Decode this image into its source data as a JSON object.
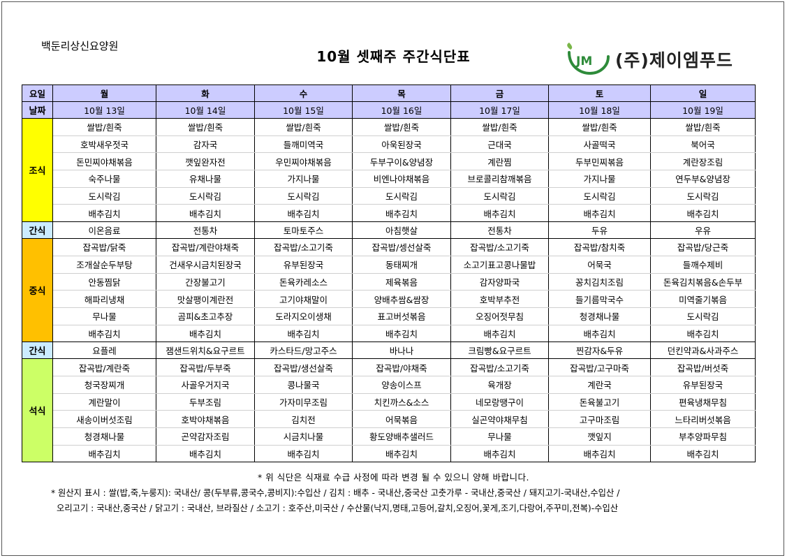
{
  "org_name": "백둔리상신요양원",
  "title": "10월 셋째주 주간식단표",
  "logo_text": "(주)제이엠푸드",
  "headers": {
    "day_label": "요일",
    "date_label": "날짜",
    "days": [
      "월",
      "화",
      "수",
      "목",
      "금",
      "토",
      "일"
    ],
    "dates": [
      "10월 13일",
      "10월 14일",
      "10월 15일",
      "10월 16일",
      "10월 17일",
      "10월 18일",
      "10월 19일"
    ]
  },
  "sections": {
    "breakfast": {
      "label": "조식",
      "rows": [
        [
          "쌀밥/흰죽",
          "쌀밥/흰죽",
          "쌀밥/흰죽",
          "쌀밥/흰죽",
          "쌀밥/흰죽",
          "쌀밥/흰죽",
          "쌀밥/흰죽"
        ],
        [
          "호박새우젓국",
          "감자국",
          "들깨미역국",
          "아욱된장국",
          "근대국",
          "사골떡국",
          "북어국"
        ],
        [
          "돈민찌야채볶음",
          "깻잎완자전",
          "우민찌야채볶음",
          "두부구이&양념장",
          "계란찜",
          "두부민찌볶음",
          "계란장조림"
        ],
        [
          "숙주나물",
          "유채나물",
          "가지나물",
          "비엔나야채볶음",
          "브로콜리참깨볶음",
          "가지나물",
          "연두부&양념장"
        ],
        [
          "도시락김",
          "도시락김",
          "도시락김",
          "도시락김",
          "도시락김",
          "도시락김",
          "도시락김"
        ],
        [
          "배추김치",
          "배추김치",
          "배추김치",
          "배추김치",
          "배추김치",
          "배추김치",
          "배추김치"
        ]
      ]
    },
    "snack1": {
      "label": "간식",
      "row": [
        "이온음료",
        "전통차",
        "토마토주스",
        "아침햇살",
        "전통차",
        "두유",
        "우유"
      ]
    },
    "lunch": {
      "label": "중식",
      "rows": [
        [
          "잡곡밥/닭죽",
          "잡곡밥/계란야채죽",
          "잡곡밥/소고기죽",
          "잡곡밥/셍선살죽",
          "잡곡밥/소고기죽",
          "잡곡밥/참치죽",
          "잡곡밥/당근죽"
        ],
        [
          "조개살순두부탕",
          "건새우시금치된장국",
          "유부된장국",
          "동태찌개",
          "소고기표고콩나물밥",
          "어묵국",
          "들깨수제비"
        ],
        [
          "안동찜닭",
          "간장불고기",
          "돈육카레소스",
          "제육볶음",
          "감자양파국",
          "꽁치김치조림",
          "돈육김치볶음&손두부"
        ],
        [
          "해파리냉채",
          "맛살팽이계란전",
          "고기야채말이",
          "양배추쌈&쌈장",
          "호박부추전",
          "들기름막국수",
          "미역줄기볶음"
        ],
        [
          "무나물",
          "곰피&초고추장",
          "도라지오이생채",
          "표고버섯볶음",
          "오징어젓무침",
          "청경채나물",
          "도시락김"
        ],
        [
          "배추김치",
          "배추김치",
          "배추김치",
          "배추김치",
          "배추김치",
          "배추김치",
          "배추김치"
        ]
      ]
    },
    "snack2": {
      "label": "간식",
      "row": [
        "요플레",
        "잼샌드위치&요구르트",
        "카스타드/망고주스",
        "바나나",
        "크림빵&요구르트",
        "찐감자&두유",
        "던킨약과&사과주스"
      ]
    },
    "dinner": {
      "label": "석식",
      "rows": [
        [
          "잡곡밥/계란죽",
          "잡곡밥/두부죽",
          "잡곡밥/생선살죽",
          "잡곡밥/야채죽",
          "잡곡밥/소고기죽",
          "잡곡밥/고구마죽",
          "잡곡밥/버섯죽"
        ],
        [
          "청국장찌개",
          "사골우거지국",
          "콩나물국",
          "양송이스프",
          "육개장",
          "계란국",
          "유부된장국"
        ],
        [
          "계란말이",
          "두부조림",
          "가자미무조림",
          "치킨까스&소스",
          "네모랑땡구이",
          "돈육불고기",
          "편육냉채무침"
        ],
        [
          "새송이버섯조림",
          "호박야채볶음",
          "김치전",
          "어묵볶음",
          "실곤약야채무침",
          "고구마조림",
          "느타리버섯볶음"
        ],
        [
          "청경채나물",
          "곤약감자조림",
          "시금치나물",
          "황도양배추샐러드",
          "무나물",
          "깻잎지",
          "부추양파무침"
        ],
        [
          "배추김치",
          "배추김치",
          "배추김치",
          "배추김치",
          "배추김치",
          "배추김치",
          "배추김치"
        ]
      ]
    }
  },
  "notice": "* 위 식단은 식재료 수급 사정에 따라 변경 될 수 있으니 양해 바랍니다.",
  "origin_line1": "* 원산지 표시 : 쌀(밥,죽,누룽지): 국내산/ 콩(두부류,콩국수,콩비지):수입산 / 김치 : 배추 - 국내산,중국산 고춧가루 - 국내산,중국산 / 돼지고기-국내산,수입산 /",
  "origin_line2": "오리고기 : 국내산,중국산 / 닭고기 : 국내산, 브라질산 / 소고기 : 호주산,미국산 / 수산물(낙지,명태,고등어,갈치,오징어,꽃게,조기,다랑어,주꾸미,전복)-수입산",
  "colors": {
    "header": "#ccccff",
    "breakfast": "#ffff00",
    "snack": "#ccecff",
    "lunch": "#ffc000",
    "dinner": "#ccff66"
  }
}
